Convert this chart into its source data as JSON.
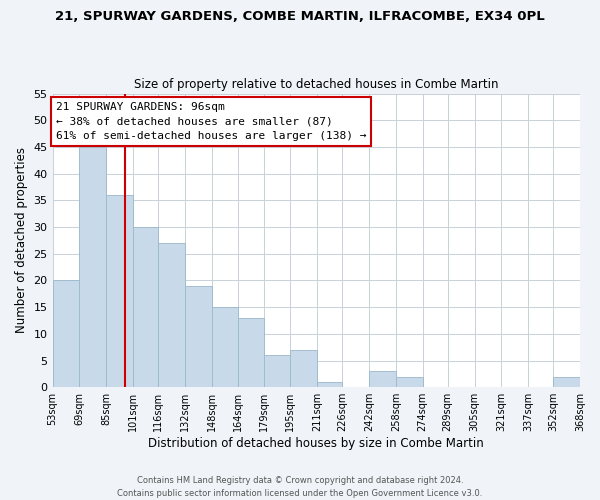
{
  "title": "21, SPURWAY GARDENS, COMBE MARTIN, ILFRACOMBE, EX34 0PL",
  "subtitle": "Size of property relative to detached houses in Combe Martin",
  "xlabel": "Distribution of detached houses by size in Combe Martin",
  "ylabel": "Number of detached properties",
  "bar_color": "#c8daea",
  "bar_edgecolor": "#9bb8cc",
  "vline_x": 96,
  "vline_color": "#cc0000",
  "annotation_title": "21 SPURWAY GARDENS: 96sqm",
  "annotation_line1": "← 38% of detached houses are smaller (87)",
  "annotation_line2": "61% of semi-detached houses are larger (138) →",
  "annotation_box_facecolor": "white",
  "annotation_box_edgecolor": "#cc0000",
  "footer1": "Contains HM Land Registry data © Crown copyright and database right 2024.",
  "footer2": "Contains public sector information licensed under the Open Government Licence v3.0.",
  "bin_edges": [
    53,
    69,
    85,
    101,
    116,
    132,
    148,
    164,
    179,
    195,
    211,
    226,
    242,
    258,
    274,
    289,
    305,
    321,
    337,
    352,
    368
  ],
  "bin_counts": [
    20,
    45,
    36,
    30,
    27,
    19,
    15,
    13,
    6,
    7,
    1,
    0,
    3,
    2,
    0,
    0,
    0,
    0,
    0,
    2
  ],
  "ylim": [
    0,
    55
  ],
  "yticks": [
    0,
    5,
    10,
    15,
    20,
    25,
    30,
    35,
    40,
    45,
    50,
    55
  ],
  "grid_color": "#c8d0d8",
  "figure_facecolor": "#f0f4f8",
  "axes_facecolor": "#ffffff"
}
